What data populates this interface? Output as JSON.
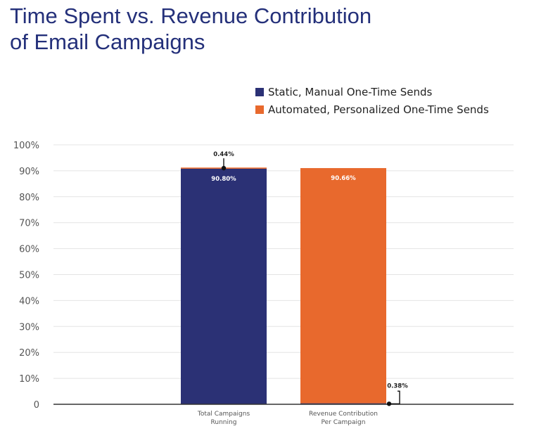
{
  "title_lines": [
    "Time Spent vs. Revenue Contribution",
    "of Email Campaigns"
  ],
  "colors": {
    "static": "#2b3175",
    "automated": "#e8692d",
    "title": "#24307a"
  },
  "chart_data": {
    "type": "bar",
    "stacked": true,
    "categories": [
      [
        "Total Campaigns",
        "Running"
      ],
      [
        "Revenue Contribution",
        "Per Campaign"
      ]
    ],
    "series": [
      {
        "name": "Static, Manual One-Time Sends",
        "values": [
          90.8,
          0.38
        ],
        "color": "#2b3175"
      },
      {
        "name": "Automated, Personalized One-Time Sends",
        "values": [
          0.44,
          90.66
        ],
        "color": "#e8692d"
      }
    ],
    "data_labels": [
      {
        "text": "90.80%",
        "category": 0,
        "series": 0,
        "placement": "inside-top"
      },
      {
        "text": "0.44%",
        "category": 0,
        "series": 1,
        "placement": "callout-above"
      },
      {
        "text": "90.66%",
        "category": 1,
        "series": 1,
        "placement": "inside-top"
      },
      {
        "text": "0.38%",
        "category": 1,
        "series": 0,
        "placement": "callout-right"
      }
    ],
    "y_ticks": [
      "0",
      "10%",
      "20%",
      "30%",
      "40%",
      "50%",
      "60%",
      "70%",
      "80%",
      "90%",
      "100%"
    ],
    "ylim": [
      0,
      100
    ],
    "grid": true,
    "legend_position": "top-right"
  }
}
